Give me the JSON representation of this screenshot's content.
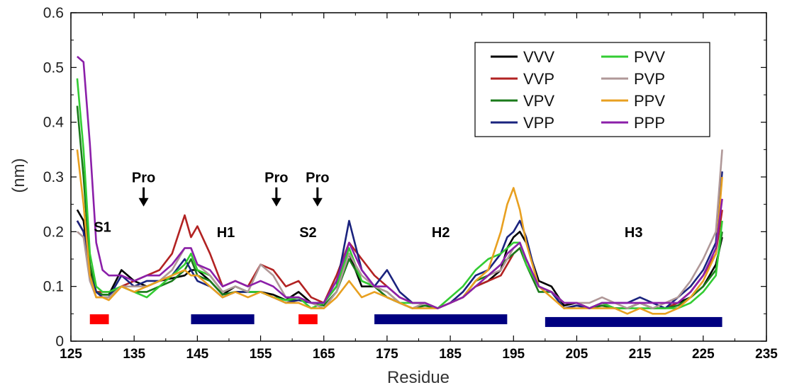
{
  "chart_data": {
    "type": "line",
    "xlabel": "Residue",
    "ylabel": "(nm)",
    "xlim": [
      125,
      235
    ],
    "ylim": [
      0,
      0.6
    ],
    "xticks": [
      125,
      135,
      145,
      155,
      165,
      175,
      185,
      195,
      205,
      215,
      225,
      235
    ],
    "yticks": [
      0,
      0.1,
      0.2,
      0.3,
      0.4,
      0.5,
      0.6
    ],
    "ytick_labels": [
      "0",
      "0.1",
      "0.2",
      "0.3",
      "0.4",
      "0.5",
      "0.6"
    ],
    "grid": false,
    "legend_position": "top-right",
    "series": [
      {
        "name": "VVV",
        "color": "#000000",
        "x": [
          126,
          127,
          128,
          129,
          130,
          131,
          133,
          135,
          137,
          139,
          141,
          143,
          144,
          145,
          147,
          149,
          151,
          153,
          155,
          157,
          159,
          161,
          163,
          165,
          167,
          169,
          171,
          173,
          175,
          177,
          179,
          181,
          183,
          185,
          187,
          189,
          191,
          193,
          194,
          195,
          196,
          197,
          199,
          201,
          203,
          205,
          207,
          209,
          211,
          213,
          215,
          217,
          219,
          221,
          223,
          225,
          227,
          228
        ],
        "y": [
          0.24,
          0.22,
          0.13,
          0.09,
          0.085,
          0.085,
          0.13,
          0.11,
          0.1,
          0.11,
          0.115,
          0.12,
          0.13,
          0.13,
          0.11,
          0.085,
          0.1,
          0.09,
          0.09,
          0.085,
          0.075,
          0.09,
          0.07,
          0.07,
          0.1,
          0.16,
          0.1,
          0.1,
          0.08,
          0.07,
          0.06,
          0.065,
          0.06,
          0.07,
          0.08,
          0.1,
          0.11,
          0.13,
          0.17,
          0.19,
          0.2,
          0.18,
          0.11,
          0.1,
          0.065,
          0.07,
          0.06,
          0.065,
          0.06,
          0.06,
          0.07,
          0.06,
          0.06,
          0.07,
          0.08,
          0.1,
          0.14,
          0.19
        ]
      },
      {
        "name": "VVP",
        "color": "#b22222",
        "x": [
          126,
          127,
          128,
          129,
          130,
          131,
          133,
          135,
          137,
          139,
          141,
          143,
          144,
          145,
          147,
          149,
          151,
          153,
          155,
          157,
          159,
          161,
          163,
          165,
          167,
          169,
          171,
          173,
          175,
          177,
          179,
          181,
          183,
          185,
          187,
          189,
          191,
          193,
          194,
          195,
          196,
          197,
          199,
          201,
          203,
          205,
          207,
          209,
          211,
          213,
          215,
          217,
          219,
          221,
          223,
          225,
          227,
          228
        ],
        "y": [
          0.22,
          0.2,
          0.12,
          0.09,
          0.09,
          0.09,
          0.1,
          0.11,
          0.12,
          0.13,
          0.16,
          0.23,
          0.19,
          0.21,
          0.16,
          0.1,
          0.11,
          0.1,
          0.14,
          0.13,
          0.1,
          0.11,
          0.08,
          0.07,
          0.12,
          0.18,
          0.15,
          0.12,
          0.1,
          0.08,
          0.07,
          0.07,
          0.06,
          0.07,
          0.08,
          0.1,
          0.11,
          0.12,
          0.14,
          0.16,
          0.17,
          0.15,
          0.1,
          0.09,
          0.07,
          0.07,
          0.06,
          0.07,
          0.06,
          0.06,
          0.07,
          0.06,
          0.06,
          0.07,
          0.09,
          0.12,
          0.16,
          0.24
        ]
      },
      {
        "name": "VPV",
        "color": "#1a7a1a",
        "x": [
          126,
          127,
          128,
          129,
          130,
          131,
          133,
          135,
          137,
          139,
          141,
          143,
          144,
          145,
          147,
          149,
          151,
          153,
          155,
          157,
          159,
          161,
          163,
          165,
          167,
          169,
          171,
          173,
          175,
          177,
          179,
          181,
          183,
          185,
          187,
          189,
          191,
          193,
          194,
          195,
          196,
          197,
          199,
          201,
          203,
          205,
          207,
          209,
          211,
          213,
          215,
          217,
          219,
          221,
          223,
          225,
          227,
          228
        ],
        "y": [
          0.43,
          0.3,
          0.14,
          0.09,
          0.085,
          0.085,
          0.1,
          0.09,
          0.09,
          0.1,
          0.11,
          0.13,
          0.15,
          0.12,
          0.11,
          0.085,
          0.09,
          0.09,
          0.09,
          0.08,
          0.075,
          0.075,
          0.07,
          0.065,
          0.09,
          0.15,
          0.11,
          0.1,
          0.08,
          0.07,
          0.06,
          0.065,
          0.06,
          0.07,
          0.08,
          0.11,
          0.12,
          0.14,
          0.15,
          0.16,
          0.17,
          0.14,
          0.09,
          0.09,
          0.06,
          0.065,
          0.06,
          0.065,
          0.06,
          0.06,
          0.07,
          0.06,
          0.06,
          0.065,
          0.08,
          0.1,
          0.13,
          0.2
        ]
      },
      {
        "name": "VPP",
        "color": "#1a237e",
        "x": [
          126,
          127,
          128,
          129,
          130,
          131,
          133,
          135,
          137,
          139,
          141,
          143,
          144,
          145,
          147,
          149,
          151,
          153,
          155,
          157,
          159,
          161,
          163,
          165,
          167,
          169,
          171,
          173,
          175,
          177,
          179,
          181,
          183,
          185,
          187,
          189,
          191,
          193,
          194,
          195,
          196,
          197,
          199,
          201,
          203,
          205,
          207,
          209,
          211,
          213,
          215,
          217,
          219,
          221,
          223,
          225,
          227,
          228
        ],
        "y": [
          0.22,
          0.2,
          0.12,
          0.09,
          0.08,
          0.08,
          0.12,
          0.1,
          0.11,
          0.11,
          0.12,
          0.15,
          0.13,
          0.11,
          0.1,
          0.08,
          0.09,
          0.09,
          0.09,
          0.08,
          0.07,
          0.075,
          0.07,
          0.07,
          0.1,
          0.22,
          0.13,
          0.1,
          0.13,
          0.09,
          0.07,
          0.07,
          0.06,
          0.07,
          0.09,
          0.12,
          0.13,
          0.16,
          0.19,
          0.2,
          0.22,
          0.19,
          0.1,
          0.09,
          0.06,
          0.065,
          0.06,
          0.07,
          0.07,
          0.07,
          0.08,
          0.07,
          0.06,
          0.08,
          0.1,
          0.13,
          0.18,
          0.31
        ]
      },
      {
        "name": "PVV",
        "color": "#33cc33",
        "x": [
          126,
          127,
          128,
          129,
          130,
          131,
          133,
          135,
          137,
          139,
          141,
          143,
          144,
          145,
          147,
          149,
          151,
          153,
          155,
          157,
          159,
          161,
          163,
          165,
          167,
          169,
          171,
          173,
          175,
          177,
          179,
          181,
          183,
          185,
          187,
          189,
          191,
          193,
          194,
          195,
          196,
          197,
          199,
          201,
          203,
          205,
          207,
          209,
          211,
          213,
          215,
          217,
          219,
          221,
          223,
          225,
          227,
          228
        ],
        "y": [
          0.48,
          0.35,
          0.16,
          0.1,
          0.09,
          0.09,
          0.1,
          0.09,
          0.08,
          0.1,
          0.12,
          0.14,
          0.16,
          0.13,
          0.12,
          0.09,
          0.1,
          0.09,
          0.09,
          0.08,
          0.075,
          0.08,
          0.06,
          0.07,
          0.1,
          0.17,
          0.11,
          0.1,
          0.09,
          0.07,
          0.07,
          0.07,
          0.06,
          0.08,
          0.1,
          0.13,
          0.15,
          0.16,
          0.17,
          0.18,
          0.18,
          0.14,
          0.1,
          0.09,
          0.07,
          0.07,
          0.06,
          0.07,
          0.06,
          0.06,
          0.06,
          0.06,
          0.06,
          0.06,
          0.07,
          0.09,
          0.12,
          0.22
        ]
      },
      {
        "name": "PVP",
        "color": "#b09898",
        "x": [
          126,
          127,
          128,
          129,
          130,
          131,
          133,
          135,
          137,
          139,
          141,
          143,
          144,
          145,
          147,
          149,
          151,
          153,
          155,
          157,
          159,
          161,
          163,
          165,
          167,
          169,
          171,
          173,
          175,
          177,
          179,
          181,
          183,
          185,
          187,
          189,
          191,
          193,
          194,
          195,
          196,
          197,
          199,
          201,
          203,
          205,
          207,
          209,
          211,
          213,
          215,
          217,
          219,
          221,
          223,
          225,
          227,
          228
        ],
        "y": [
          0.2,
          0.19,
          0.11,
          0.08,
          0.08,
          0.08,
          0.1,
          0.1,
          0.1,
          0.11,
          0.13,
          0.17,
          0.17,
          0.14,
          0.12,
          0.09,
          0.1,
          0.09,
          0.14,
          0.12,
          0.08,
          0.08,
          0.07,
          0.06,
          0.09,
          0.16,
          0.12,
          0.1,
          0.09,
          0.07,
          0.06,
          0.07,
          0.06,
          0.07,
          0.08,
          0.1,
          0.12,
          0.13,
          0.15,
          0.17,
          0.18,
          0.15,
          0.1,
          0.09,
          0.07,
          0.07,
          0.07,
          0.08,
          0.07,
          0.06,
          0.07,
          0.06,
          0.07,
          0.08,
          0.11,
          0.15,
          0.2,
          0.35
        ]
      },
      {
        "name": "PPV",
        "color": "#e8a020",
        "x": [
          126,
          127,
          128,
          129,
          130,
          131,
          133,
          135,
          137,
          139,
          141,
          143,
          144,
          145,
          147,
          149,
          151,
          153,
          155,
          157,
          159,
          161,
          163,
          165,
          167,
          169,
          171,
          173,
          175,
          177,
          179,
          181,
          183,
          185,
          187,
          189,
          191,
          193,
          194,
          195,
          196,
          197,
          199,
          201,
          203,
          205,
          207,
          209,
          211,
          213,
          215,
          217,
          219,
          221,
          223,
          225,
          227,
          228
        ],
        "y": [
          0.35,
          0.25,
          0.12,
          0.08,
          0.08,
          0.075,
          0.1,
          0.09,
          0.1,
          0.11,
          0.12,
          0.13,
          0.12,
          0.12,
          0.1,
          0.08,
          0.09,
          0.08,
          0.09,
          0.08,
          0.07,
          0.07,
          0.06,
          0.06,
          0.08,
          0.11,
          0.08,
          0.09,
          0.08,
          0.07,
          0.06,
          0.06,
          0.06,
          0.07,
          0.08,
          0.11,
          0.13,
          0.2,
          0.25,
          0.28,
          0.24,
          0.18,
          0.1,
          0.08,
          0.06,
          0.06,
          0.06,
          0.06,
          0.06,
          0.05,
          0.06,
          0.05,
          0.05,
          0.06,
          0.08,
          0.11,
          0.16,
          0.3
        ]
      },
      {
        "name": "PPP",
        "color": "#8b1fa9",
        "x": [
          126,
          127,
          128,
          129,
          130,
          131,
          133,
          135,
          137,
          139,
          141,
          143,
          144,
          145,
          147,
          149,
          151,
          153,
          155,
          157,
          159,
          161,
          163,
          165,
          167,
          169,
          171,
          173,
          175,
          177,
          179,
          181,
          183,
          185,
          187,
          189,
          191,
          193,
          194,
          195,
          196,
          197,
          199,
          201,
          203,
          205,
          207,
          209,
          211,
          213,
          215,
          217,
          219,
          221,
          223,
          225,
          227,
          228
        ],
        "y": [
          0.52,
          0.51,
          0.36,
          0.18,
          0.13,
          0.12,
          0.12,
          0.11,
          0.12,
          0.12,
          0.14,
          0.17,
          0.17,
          0.14,
          0.13,
          0.1,
          0.11,
          0.1,
          0.11,
          0.1,
          0.08,
          0.08,
          0.07,
          0.07,
          0.11,
          0.18,
          0.13,
          0.1,
          0.1,
          0.08,
          0.07,
          0.07,
          0.06,
          0.07,
          0.08,
          0.1,
          0.12,
          0.14,
          0.16,
          0.17,
          0.18,
          0.15,
          0.1,
          0.09,
          0.07,
          0.07,
          0.06,
          0.07,
          0.07,
          0.07,
          0.07,
          0.07,
          0.07,
          0.07,
          0.09,
          0.12,
          0.17,
          0.26
        ]
      }
    ],
    "annotations": [
      {
        "text": "Pro",
        "x": 136.5,
        "y": 0.29,
        "arrow": true
      },
      {
        "text": "Pro",
        "x": 157.5,
        "y": 0.29,
        "arrow": true
      },
      {
        "text": "Pro",
        "x": 164,
        "y": 0.29,
        "arrow": true
      },
      {
        "text": "S1",
        "x": 130,
        "y": 0.2
      },
      {
        "text": "H1",
        "x": 149.5,
        "y": 0.19
      },
      {
        "text": "S2",
        "x": 162.5,
        "y": 0.19
      },
      {
        "text": "H2",
        "x": 183.5,
        "y": 0.19
      },
      {
        "text": "H3",
        "x": 214,
        "y": 0.19
      }
    ],
    "secondary_structure": [
      {
        "type": "strand",
        "start": 128,
        "end": 131,
        "y": 0.04,
        "color": "#ff0000"
      },
      {
        "type": "helix",
        "start": 144,
        "end": 154,
        "y": 0.04,
        "color": "#000080"
      },
      {
        "type": "strand",
        "start": 161,
        "end": 164,
        "y": 0.04,
        "color": "#ff0000"
      },
      {
        "type": "helix",
        "start": 173,
        "end": 194,
        "y": 0.04,
        "color": "#000080"
      },
      {
        "type": "helix",
        "start": 200,
        "end": 228,
        "y": 0.035,
        "color": "#000080"
      }
    ]
  }
}
